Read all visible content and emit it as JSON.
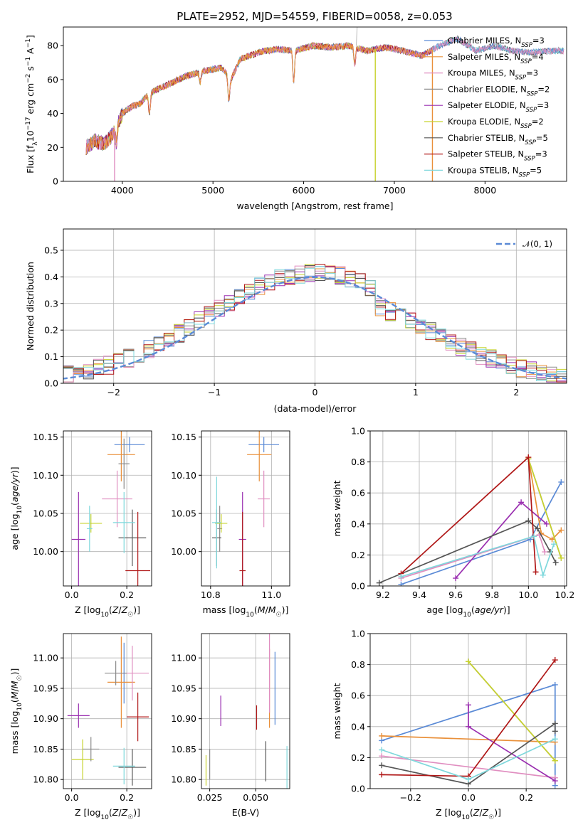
{
  "colors": {
    "chabrier_miles": "#5a8ad6",
    "salpeter_miles": "#e9903a",
    "kroupa_miles": "#e08ec0",
    "chabrier_elodie": "#8a8a8a",
    "salpeter_elodie": "#9a2fb0",
    "kroupa_elodie": "#c8d32e",
    "chabrier_stelib": "#555555",
    "salpeter_stelib": "#b01818",
    "kroupa_stelib": "#7fd8dc",
    "gaussian": "#5a8ad6"
  },
  "chart_data": [
    {
      "type": "line",
      "title": "PLATE=2952, MJD=54559, FIBERID=0058, z=0.053",
      "xlabel": "wavelength [Angstrom, rest frame]",
      "ylabel": "Flux [f_λ10^-17 erg cm^-2 s^-1 A^-1]",
      "xlim": [
        3350,
        8900
      ],
      "ylim": [
        0,
        91
      ],
      "xticks": [
        "4000",
        "5000",
        "6000",
        "7000",
        "8000"
      ],
      "yticks": [
        "0",
        "20",
        "40",
        "60",
        "80"
      ],
      "grid": false,
      "legend_position": "right",
      "legend": [
        "Chabrier MILES, N_SSP=3",
        "Salpeter MILES, N_SSP=4",
        "Kroupa MILES, N_SSP=3",
        "Chabrier ELODIE, N_SSP=2",
        "Salpeter ELODIE, N_SSP=3",
        "Kroupa ELODIE, N_SSP=2",
        "Chabrier STELIB, N_SSP=5",
        "Salpeter STELIB, N_SSP=3",
        "Kroupa STELIB, N_SSP=5"
      ],
      "data_envelope": {
        "x": [
          3600,
          3700,
          3800,
          3900,
          4000,
          4100,
          4200,
          4300,
          4500,
          4700,
          4900,
          5100,
          5200,
          5300,
          5500,
          5700,
          5900,
          6100,
          6300,
          6500,
          6700,
          6900,
          7100,
          7300,
          7500,
          7700,
          7900,
          8100,
          8300,
          8500,
          8800
        ],
        "y": [
          20,
          24,
          22,
          28,
          40,
          44,
          46,
          52,
          57,
          62,
          65,
          67,
          60,
          72,
          76,
          78,
          77,
          80,
          79,
          80,
          77,
          79,
          77,
          74,
          80,
          84,
          77,
          80,
          77,
          76,
          77
        ]
      },
      "absorption_lines": [
        {
          "x": 3935,
          "depth": 10
        },
        {
          "x": 4300,
          "depth": 12
        },
        {
          "x": 4860,
          "depth": 6
        },
        {
          "x": 5175,
          "depth": 14
        },
        {
          "x": 5890,
          "depth": 18
        },
        {
          "x": 6563,
          "depth": 10
        }
      ]
    },
    {
      "type": "bar",
      "subtype": "step_histogram",
      "xlabel": "(data-model)/error",
      "ylabel": "Normed distribution",
      "xlim": [
        -2.5,
        2.5
      ],
      "ylim": [
        0,
        0.58
      ],
      "xticks": [
        "−2",
        "−1",
        "0",
        "1",
        "2"
      ],
      "yticks": [
        "0.0",
        "0.1",
        "0.2",
        "0.3",
        "0.4",
        "0.5"
      ],
      "grid": true,
      "legend_position": "top-right",
      "legend": [
        "𝒩(0, 1)"
      ],
      "bin_width": 0.1
    },
    {
      "type": "scatter",
      "subtype": "errorbar",
      "xlabel": "Z [log10(Z/Z☉)]",
      "ylabel": "age [log10(age/yr)]",
      "xlim": [
        -0.03,
        0.29
      ],
      "ylim": [
        9.955,
        10.158
      ],
      "xticks": [
        "0.0",
        "0.2"
      ],
      "yticks": [
        "10.00",
        "10.05",
        "10.10",
        "10.15"
      ],
      "grid": true,
      "points": [
        {
          "series": "chabrier_miles",
          "x": 0.21,
          "xerr": 0.055,
          "y": 10.14,
          "yerr": 0.01
        },
        {
          "series": "salpeter_miles",
          "x": 0.18,
          "xerr": 0.05,
          "y": 10.127,
          "yerr": 0.035
        },
        {
          "series": "kroupa_miles",
          "x": 0.165,
          "xerr": 0.055,
          "y": 10.069,
          "yerr": 0.037
        },
        {
          "series": "chabrier_elodie",
          "x": 0.19,
          "xerr": 0.02,
          "y": 10.115,
          "yerr": 0.033
        },
        {
          "series": "salpeter_elodie",
          "x": 0.025,
          "xerr": 0.025,
          "y": 10.016,
          "yerr": 0.062
        },
        {
          "series": "kroupa_elodie",
          "x": 0.07,
          "xerr": 0.04,
          "y": 10.037,
          "yerr": 0.012
        },
        {
          "series": "chabrier_stelib",
          "x": 0.22,
          "xerr": 0.05,
          "y": 10.018,
          "yerr": 0.037
        },
        {
          "series": "salpeter_stelib",
          "x": 0.24,
          "xerr": 0.045,
          "y": 9.975,
          "yerr": 0.077
        },
        {
          "series": "kroupa_stelib",
          "x": 0.19,
          "xerr": 0.04,
          "y": 10.038,
          "yerr": 0.04
        },
        {
          "series": "kroupa_stelib",
          "x": 0.065,
          "xerr": 0.01,
          "y": 10.03,
          "yerr": 0.03
        }
      ]
    },
    {
      "type": "scatter",
      "subtype": "errorbar",
      "xlabel": "mass [log10(M/M☉)]",
      "ylabel": "",
      "xlim": [
        10.77,
        11.06
      ],
      "ylim": [
        9.955,
        10.158
      ],
      "xticks": [
        "10.8",
        "11.0"
      ],
      "yticks": [
        "10.00",
        "10.05",
        "10.10",
        "10.15"
      ],
      "grid": true,
      "points": [
        {
          "series": "chabrier_miles",
          "x": 10.975,
          "xerr": 0.05,
          "y": 10.14,
          "yerr": 0.01
        },
        {
          "series": "salpeter_miles",
          "x": 10.96,
          "xerr": 0.04,
          "y": 10.127,
          "yerr": 0.035
        },
        {
          "series": "kroupa_miles",
          "x": 10.975,
          "xerr": 0.02,
          "y": 10.069,
          "yerr": 0.037
        },
        {
          "series": "chabrier_elodie",
          "x": 10.83,
          "xerr": 0.008,
          "y": 10.03,
          "yerr": 0.03
        },
        {
          "series": "salpeter_elodie",
          "x": 10.905,
          "xerr": 0.012,
          "y": 10.016,
          "yerr": 0.062
        },
        {
          "series": "kroupa_elodie",
          "x": 10.835,
          "xerr": 0.02,
          "y": 10.037,
          "yerr": 0.012
        },
        {
          "series": "chabrier_stelib",
          "x": 10.82,
          "xerr": 0.015,
          "y": 10.018,
          "yerr": 0.037
        },
        {
          "series": "salpeter_stelib",
          "x": 10.905,
          "xerr": 0.01,
          "y": 9.975,
          "yerr": 0.077
        },
        {
          "series": "kroupa_stelib",
          "x": 10.82,
          "xerr": 0.015,
          "y": 10.038,
          "yerr": 0.06
        }
      ]
    },
    {
      "type": "line",
      "xlabel": "age  [log10(age/yr)]",
      "ylabel": "mass weight",
      "xlim": [
        9.13,
        10.21
      ],
      "ylim": [
        0,
        1.0
      ],
      "xticks": [
        "9.2",
        "9.4",
        "9.6",
        "9.8",
        "10.0",
        "10.2"
      ],
      "yticks": [
        "0.0",
        "0.2",
        "0.4",
        "0.6",
        "0.8",
        "1.0"
      ],
      "grid": true,
      "series": [
        {
          "name_key": "chabrier_miles",
          "x": [
            9.3,
            10.01,
            10.18
          ],
          "y": [
            0.01,
            0.3,
            0.67
          ]
        },
        {
          "name_key": "salpeter_miles",
          "x": [
            10.0,
            10.07,
            10.13,
            10.18
          ],
          "y": [
            0.83,
            0.34,
            0.3,
            0.36
          ]
        },
        {
          "name_key": "kroupa_miles",
          "x": [
            9.3,
            10.06,
            10.09
          ],
          "y": [
            0.05,
            0.33,
            0.22
          ]
        },
        {
          "name_key": "chabrier_elodie",
          "x": [
            10.0,
            10.18
          ],
          "y": [
            0.82,
            0.18
          ]
        },
        {
          "name_key": "salpeter_elodie",
          "x": [
            9.6,
            9.96,
            10.1
          ],
          "y": [
            0.05,
            0.54,
            0.4
          ]
        },
        {
          "name_key": "kroupa_elodie",
          "x": [
            10.0,
            10.18
          ],
          "y": [
            0.82,
            0.18
          ]
        },
        {
          "name_key": "chabrier_stelib",
          "x": [
            9.18,
            10.0,
            10.05,
            10.12,
            10.15
          ],
          "y": [
            0.02,
            0.42,
            0.37,
            0.22,
            0.15
          ]
        },
        {
          "name_key": "salpeter_stelib",
          "x": [
            9.3,
            10.0,
            10.04
          ],
          "y": [
            0.08,
            0.83,
            0.09
          ]
        },
        {
          "name_key": "kroupa_stelib",
          "x": [
            9.3,
            10.03,
            10.08,
            10.14
          ],
          "y": [
            0.06,
            0.32,
            0.07,
            0.27
          ]
        }
      ]
    },
    {
      "type": "scatter",
      "subtype": "errorbar",
      "xlabel": "Z [log10(Z/Z☉)]",
      "ylabel": "mass [log10(M/M☉)]",
      "xlim": [
        -0.03,
        0.29
      ],
      "ylim": [
        10.785,
        11.04
      ],
      "xticks": [
        "0.0",
        "0.2"
      ],
      "yticks": [
        "10.80",
        "10.85",
        "10.90",
        "10.95",
        "11.00"
      ],
      "grid": true,
      "points": [
        {
          "series": "chabrier_miles",
          "x": 0.19,
          "xerr": 0.005,
          "y": 10.975,
          "yerr": 0.05
        },
        {
          "series": "salpeter_miles",
          "x": 0.18,
          "xerr": 0.05,
          "y": 10.96,
          "yerr": 0.075
        },
        {
          "series": "kroupa_miles",
          "x": 0.22,
          "xerr": 0.06,
          "y": 10.975,
          "yerr": 0.045
        },
        {
          "series": "chabrier_elodie",
          "x": 0.16,
          "xerr": 0.04,
          "y": 10.975,
          "yerr": 0.02
        },
        {
          "series": "salpeter_elodie",
          "x": 0.025,
          "xerr": 0.04,
          "y": 10.905,
          "yerr": 0.02
        },
        {
          "series": "kroupa_elodie",
          "x": 0.04,
          "xerr": 0.04,
          "y": 10.833,
          "yerr": 0.033
        },
        {
          "series": "chabrier_stelib",
          "x": 0.22,
          "xerr": 0.05,
          "y": 10.82,
          "yerr": 0.03
        },
        {
          "series": "salpeter_stelib",
          "x": 0.24,
          "xerr": 0.04,
          "y": 10.903,
          "yerr": 0.04
        },
        {
          "series": "kroupa_stelib",
          "x": 0.19,
          "xerr": 0.04,
          "y": 10.822,
          "yerr": 0.03
        },
        {
          "series": "chabrier_elodie",
          "x": 0.07,
          "xerr": 0.03,
          "y": 10.85,
          "yerr": 0.02
        }
      ]
    },
    {
      "type": "scatter",
      "subtype": "errorbar",
      "xlabel": "E(B-V)",
      "ylabel": "",
      "xlim": [
        0.0205,
        0.0685
      ],
      "ylim": [
        10.785,
        11.04
      ],
      "xticks": [
        "0.025",
        "0.050"
      ],
      "yticks": [
        "10.80",
        "10.85",
        "10.90",
        "10.95",
        "11.00"
      ],
      "grid": true,
      "points": [
        {
          "series": "chabrier_miles",
          "x": 0.0605,
          "y": 10.95,
          "yerr": 0.06
        },
        {
          "series": "salpeter_miles",
          "x": 0.0575,
          "y": 10.95,
          "yerr": 0.065
        },
        {
          "series": "kroupa_miles",
          "x": 0.0575,
          "y": 11.02,
          "yerr": 0.11
        },
        {
          "series": "chabrier_elodie",
          "x": 0.025,
          "y": 10.825,
          "yerr": 0.025
        },
        {
          "series": "salpeter_elodie",
          "x": 0.031,
          "y": 10.913,
          "yerr": 0.025
        },
        {
          "series": "kroupa_elodie",
          "x": 0.023,
          "y": 10.815,
          "yerr": 0.025
        },
        {
          "series": "chabrier_stelib",
          "x": 0.0555,
          "y": 10.83,
          "yerr": 0.033
        },
        {
          "series": "salpeter_stelib",
          "x": 0.0505,
          "y": 10.902,
          "yerr": 0.02
        },
        {
          "series": "kroupa_stelib",
          "x": 0.067,
          "y": 10.81,
          "yerr": 0.045
        }
      ]
    },
    {
      "type": "line",
      "xlabel": "Z [log10(Z/Z☉)]",
      "ylabel": "mass weight",
      "xlim": [
        -0.34,
        0.34
      ],
      "ylim": [
        0,
        1.0
      ],
      "xticks": [
        "−0.2",
        "0.0",
        "0.2"
      ],
      "yticks": [
        "0.0",
        "0.2",
        "0.4",
        "0.6",
        "0.8",
        "1.0"
      ],
      "grid": true,
      "series": [
        {
          "name_key": "chabrier_miles",
          "x": [
            -0.3,
            0.3,
            0.3
          ],
          "y": [
            0.31,
            0.67,
            0.02
          ]
        },
        {
          "name_key": "salpeter_miles",
          "x": [
            -0.3,
            0.3
          ],
          "y": [
            0.34,
            0.3
          ]
        },
        {
          "name_key": "kroupa_miles",
          "x": [
            -0.3,
            0.3
          ],
          "y": [
            0.21,
            0.07
          ]
        },
        {
          "name_key": "chabrier_elodie",
          "x": [
            0.0,
            0.3
          ],
          "y": [
            0.82,
            0.18
          ]
        },
        {
          "name_key": "salpeter_elodie",
          "x": [
            0.0,
            0.0,
            0.3
          ],
          "y": [
            0.54,
            0.4,
            0.05
          ]
        },
        {
          "name_key": "kroupa_elodie",
          "x": [
            0.0,
            0.3
          ],
          "y": [
            0.82,
            0.18
          ]
        },
        {
          "name_key": "chabrier_stelib",
          "x": [
            -0.3,
            0.0,
            0.3,
            0.3
          ],
          "y": [
            0.15,
            0.03,
            0.42,
            0.37
          ]
        },
        {
          "name_key": "salpeter_stelib",
          "x": [
            -0.3,
            0.0,
            0.3
          ],
          "y": [
            0.09,
            0.08,
            0.83
          ]
        },
        {
          "name_key": "kroupa_stelib",
          "x": [
            -0.3,
            0.0,
            0.3
          ],
          "y": [
            0.25,
            0.06,
            0.32
          ]
        }
      ]
    }
  ]
}
